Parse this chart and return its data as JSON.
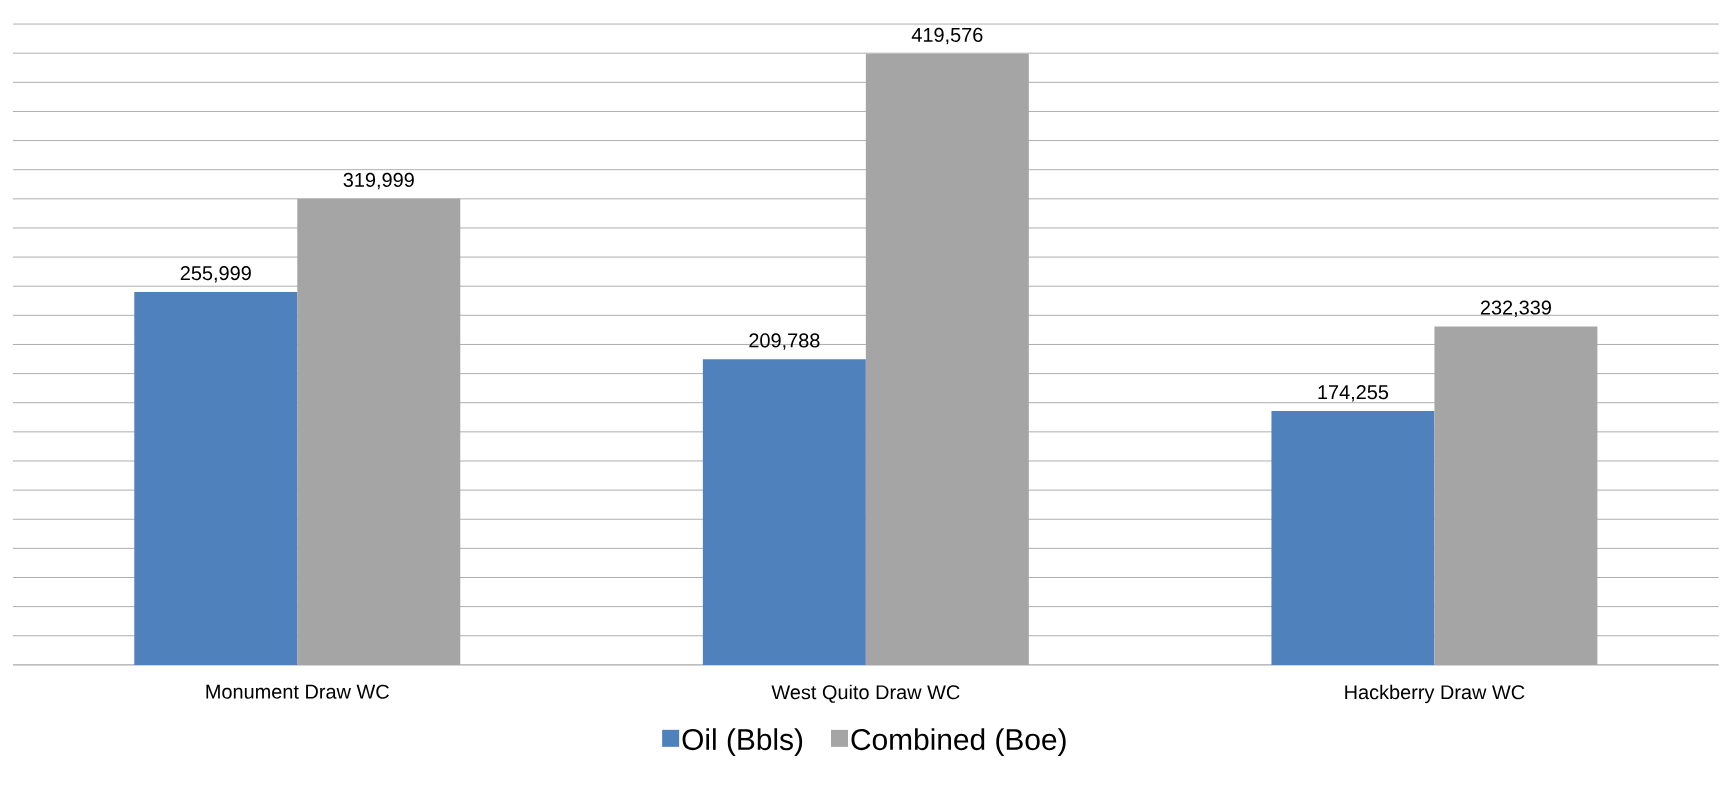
{
  "chart_data": {
    "type": "bar",
    "categories": [
      "Monument Draw WC",
      "West Quito Draw WC",
      "Hackberry Draw WC"
    ],
    "series": [
      {
        "name": "Oil (Bbls)",
        "color": "#4f81bd",
        "values": [
          255999,
          209788,
          174255
        ],
        "value_labels": [
          "255,999",
          "209,788",
          "174,255"
        ]
      },
      {
        "name": "Combined (Boe)",
        "color": "#a5a5a5",
        "values": [
          319999,
          419576,
          232339
        ],
        "value_labels": [
          "319,999",
          "419,576",
          "232,339"
        ]
      }
    ],
    "grid": "y",
    "legend": "bottom",
    "tick_labels": "x"
  }
}
